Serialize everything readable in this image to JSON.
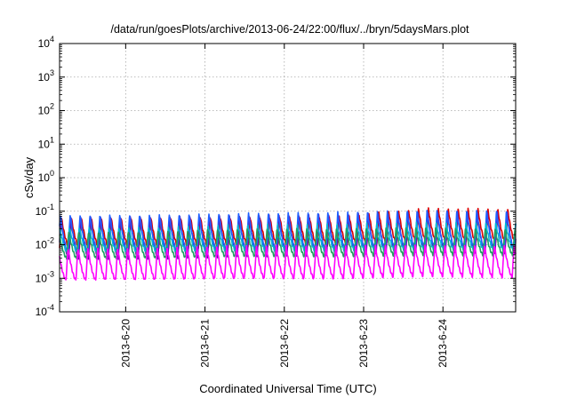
{
  "chart_data": {
    "type": "line",
    "title": "/data/run/goesPlots/archive/2013-06-24/22:00/flux/../bryn/5daysMars.plot",
    "xlabel": "Coordinated Universal Time (UTC)",
    "ylabel": "cSv/day",
    "y_scale": "log",
    "ylim": [
      0.0001,
      10000
    ],
    "xlim": [
      "2013-06-19 04:00",
      "2013-06-24 22:00"
    ],
    "y_ticks": [
      {
        "value": 0.0001,
        "mantissa": "10",
        "exp": "-4"
      },
      {
        "value": 0.001,
        "mantissa": "10",
        "exp": "-3"
      },
      {
        "value": 0.01,
        "mantissa": "10",
        "exp": "-2"
      },
      {
        "value": 0.1,
        "mantissa": "10",
        "exp": "-1"
      },
      {
        "value": 1,
        "mantissa": "10",
        "exp": "0"
      },
      {
        "value": 10,
        "mantissa": "10",
        "exp": "1"
      },
      {
        "value": 100,
        "mantissa": "10",
        "exp": "2"
      },
      {
        "value": 1000,
        "mantissa": "10",
        "exp": "3"
      },
      {
        "value": 10000,
        "mantissa": "10",
        "exp": "4"
      }
    ],
    "x_ticks": [
      {
        "value": "2013-06-20 00:00",
        "label": "2013-6-20"
      },
      {
        "value": "2013-06-21 00:00",
        "label": "2013-6-21"
      },
      {
        "value": "2013-06-22 00:00",
        "label": "2013-6-22"
      },
      {
        "value": "2013-06-23 00:00",
        "label": "2013-6-23"
      },
      {
        "value": "2013-06-24 00:00",
        "label": "2013-6-24"
      }
    ],
    "grid": true,
    "legend": "none",
    "oscillation_period_hours": 3,
    "series": [
      {
        "color": "#dd0000",
        "peak_values": [
          0.06,
          0.065,
          0.07,
          0.07,
          0.12,
          0.11
        ],
        "trough_values": [
          0.008,
          0.008,
          0.009,
          0.009,
          0.012,
          0.011
        ]
      },
      {
        "color": "#6a0dad",
        "peak_values": [
          0.07,
          0.075,
          0.08,
          0.08,
          0.09,
          0.09
        ],
        "trough_values": [
          0.004,
          0.004,
          0.0045,
          0.0045,
          0.006,
          0.0055
        ]
      },
      {
        "color": "#1f5fff",
        "peak_values": [
          0.08,
          0.085,
          0.09,
          0.09,
          0.1,
          0.1
        ],
        "trough_values": [
          0.006,
          0.006,
          0.0065,
          0.0065,
          0.008,
          0.0075
        ]
      },
      {
        "color": "#00b4d8",
        "peak_values": [
          0.035,
          0.035,
          0.04,
          0.04,
          0.045,
          0.045
        ],
        "trough_values": [
          0.006,
          0.006,
          0.0065,
          0.0065,
          0.007,
          0.007
        ]
      },
      {
        "color": "#20a060",
        "peak_values": [
          0.025,
          0.025,
          0.028,
          0.028,
          0.032,
          0.03
        ],
        "trough_values": [
          0.004,
          0.004,
          0.0045,
          0.0045,
          0.005,
          0.005
        ]
      },
      {
        "color": "#ff00ff",
        "peak_values": [
          0.008,
          0.008,
          0.009,
          0.009,
          0.01,
          0.01
        ],
        "trough_values": [
          0.0009,
          0.0009,
          0.001,
          0.001,
          0.0012,
          0.0011
        ]
      }
    ]
  }
}
